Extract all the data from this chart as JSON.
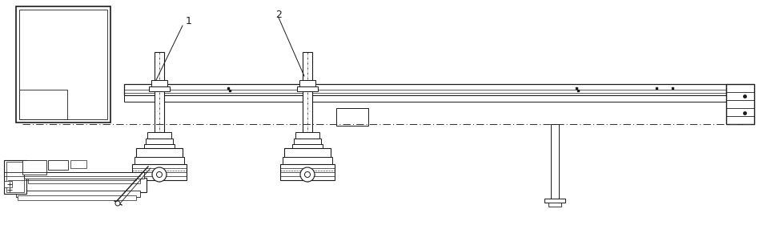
{
  "bg_color": "#ffffff",
  "line_color": "#1a1a1a",
  "fig_width": 9.58,
  "fig_height": 2.81,
  "dpi": 100,
  "label1": "1",
  "label2": "2"
}
